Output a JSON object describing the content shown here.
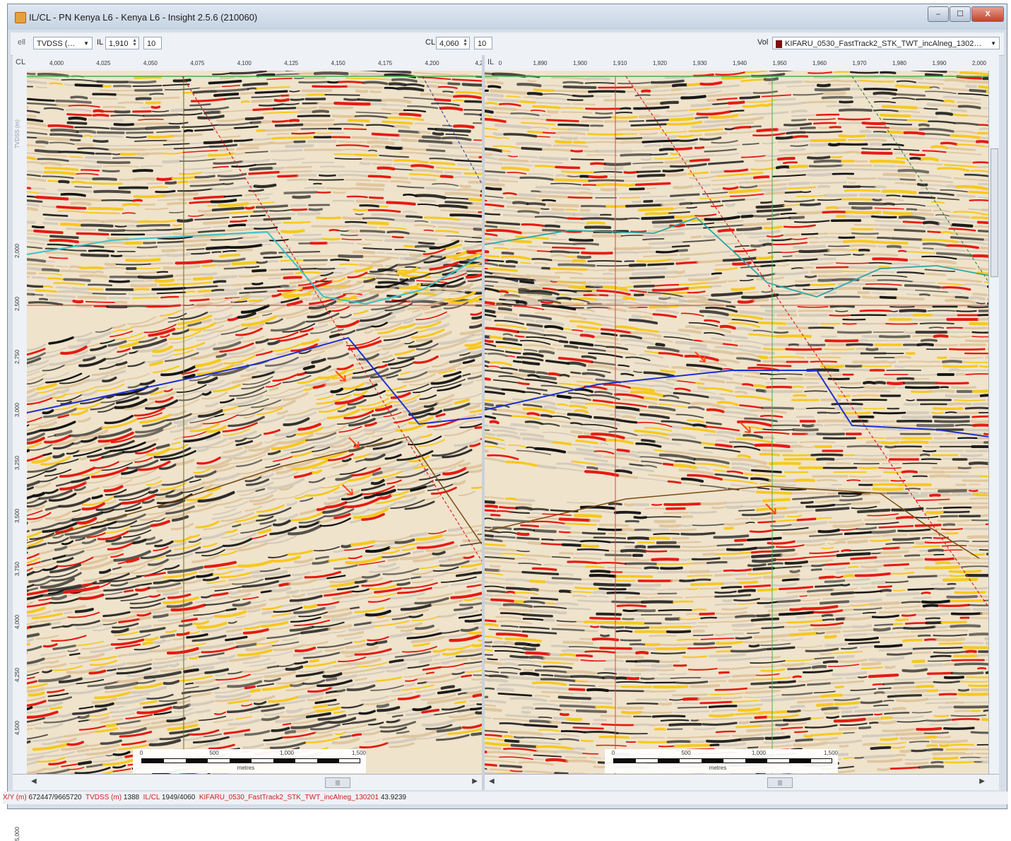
{
  "window": {
    "title": "IL/CL - PN Kenya L6 - Kenya L6 - Insight 2.5.6 (210060)",
    "buttons": [
      "–",
      "☐",
      "X"
    ]
  },
  "toolbar": {
    "mode_label": "ell",
    "depth_select": "TVDSS (…",
    "il_label": "IL",
    "il_value": "1,910",
    "il_step": "10",
    "cl_label": "CL",
    "cl_value": "4,060",
    "cl_step": "10",
    "vol_label": "Vol",
    "vol_value": "KIFARU_0530_FastTrack2_STK_TWT_incAlneg_1302…",
    "vol_color": "#7a1010"
  },
  "left_panel": {
    "axis_name": "CL",
    "x_ticks": [
      "4,000",
      "4,025",
      "4,050",
      "4,075",
      "4,100",
      "4,125",
      "4,150",
      "4,175",
      "4,200",
      "4,2"
    ],
    "y_axis_label": "TVDSS (m)",
    "y_ticks": [
      "1,500",
      "2,000",
      "2,500",
      "2,750",
      "3,000",
      "3,250",
      "3,500",
      "3,750",
      "4,000",
      "4,250",
      "4,500",
      "4,750",
      "5,000"
    ],
    "scale": {
      "ticks": [
        "0",
        "500",
        "1,000",
        "1,500"
      ],
      "unit": "metres"
    }
  },
  "right_panel": {
    "axis_name": "IL",
    "x_ticks": [
      "0",
      "1,890",
      "1,900",
      "1,910",
      "1,920",
      "1,930",
      "1,940",
      "1,950",
      "1,960",
      "1,970",
      "1,980",
      "1,990",
      "2,000"
    ],
    "scale": {
      "ticks": [
        "0",
        "500",
        "1,000",
        "1,500"
      ],
      "unit": "metres"
    }
  },
  "scroll": {
    "thumb_label": "|||"
  },
  "status": {
    "xy_label": "X/Y (m)",
    "xy_value": "672447/9665720",
    "tvdss_label": "TVDSS (m)",
    "tvdss_value": "1388",
    "ilcl_label": "IL/CL",
    "ilcl_value": "1949/4060",
    "vol_name": "KIFARU_0530_FastTrack2_STK_TWT_incAlneg_130201",
    "amp_value": "43.9239"
  }
}
